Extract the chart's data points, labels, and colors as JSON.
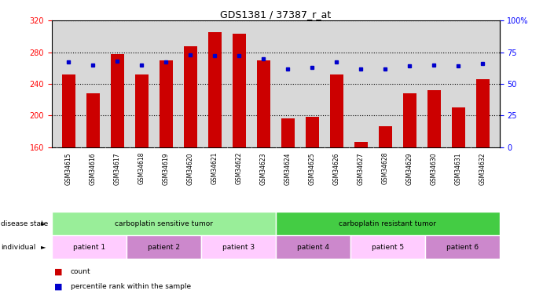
{
  "title": "GDS1381 / 37387_r_at",
  "samples": [
    "GSM34615",
    "GSM34616",
    "GSM34617",
    "GSM34618",
    "GSM34619",
    "GSM34620",
    "GSM34621",
    "GSM34622",
    "GSM34623",
    "GSM34624",
    "GSM34625",
    "GSM34626",
    "GSM34627",
    "GSM34628",
    "GSM34629",
    "GSM34630",
    "GSM34631",
    "GSM34632"
  ],
  "bar_values": [
    252,
    228,
    278,
    252,
    270,
    288,
    305,
    303,
    270,
    196,
    198,
    252,
    166,
    186,
    228,
    232,
    210,
    246
  ],
  "percentile_values": [
    67,
    65,
    68,
    65,
    67,
    73,
    72,
    72,
    70,
    62,
    63,
    67,
    62,
    62,
    64,
    65,
    64,
    66
  ],
  "y_min": 160,
  "y_max": 320,
  "y_ticks": [
    160,
    200,
    240,
    280,
    320
  ],
  "y2_ticks": [
    0,
    25,
    50,
    75,
    100
  ],
  "bar_color": "#cc0000",
  "dot_color": "#0000cc",
  "disease_states": [
    {
      "label": "carboplatin sensitive tumor",
      "start": 0,
      "end": 9,
      "color": "#99ee99"
    },
    {
      "label": "carboplatin resistant tumor",
      "start": 9,
      "end": 18,
      "color": "#44cc44"
    }
  ],
  "patients": [
    {
      "label": "patient 1",
      "start": 0,
      "end": 3,
      "color": "#ffccff"
    },
    {
      "label": "patient 2",
      "start": 3,
      "end": 6,
      "color": "#cc88cc"
    },
    {
      "label": "patient 3",
      "start": 6,
      "end": 9,
      "color": "#ffccff"
    },
    {
      "label": "patient 4",
      "start": 9,
      "end": 12,
      "color": "#cc88cc"
    },
    {
      "label": "patient 5",
      "start": 12,
      "end": 15,
      "color": "#ffccff"
    },
    {
      "label": "patient 6",
      "start": 15,
      "end": 18,
      "color": "#cc88cc"
    }
  ],
  "background_color": "#ffffff",
  "plot_bg_color": "#d8d8d8",
  "label_bg_color": "#c8c8c8"
}
